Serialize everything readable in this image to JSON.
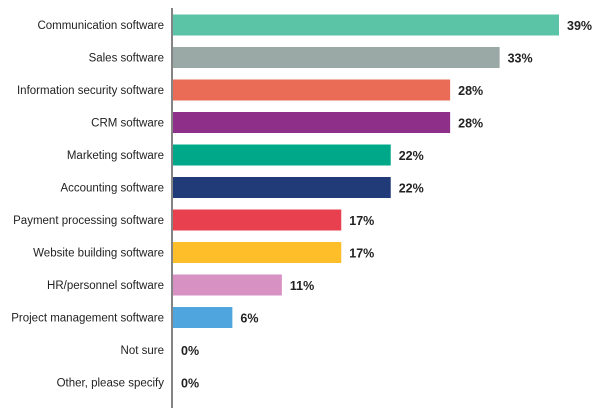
{
  "chart_data": {
    "type": "bar",
    "orientation": "horizontal",
    "categories": [
      "Communication software",
      "Sales software",
      "Information security software",
      "CRM software",
      "Marketing software",
      "Accounting software",
      "Payment processing software",
      "Website building software",
      "HR/personnel software",
      "Project management software",
      "Not sure",
      "Other, please specify"
    ],
    "values": [
      39,
      33,
      28,
      28,
      22,
      22,
      17,
      17,
      11,
      6,
      0,
      0
    ],
    "value_labels": [
      "39%",
      "33%",
      "28%",
      "28%",
      "22%",
      "22%",
      "17%",
      "17%",
      "11%",
      "6%",
      "0%",
      "0%"
    ],
    "colors": [
      "#5BC4A6",
      "#9AA8A6",
      "#EA6B56",
      "#8E2F8A",
      "#00A88A",
      "#213A78",
      "#E8404F",
      "#FDBE2A",
      "#D792C3",
      "#4FA6DE",
      "#CCCCCC",
      "#CCCCCC"
    ],
    "xlim": [
      0,
      39
    ],
    "grid": false,
    "legend": "none"
  }
}
